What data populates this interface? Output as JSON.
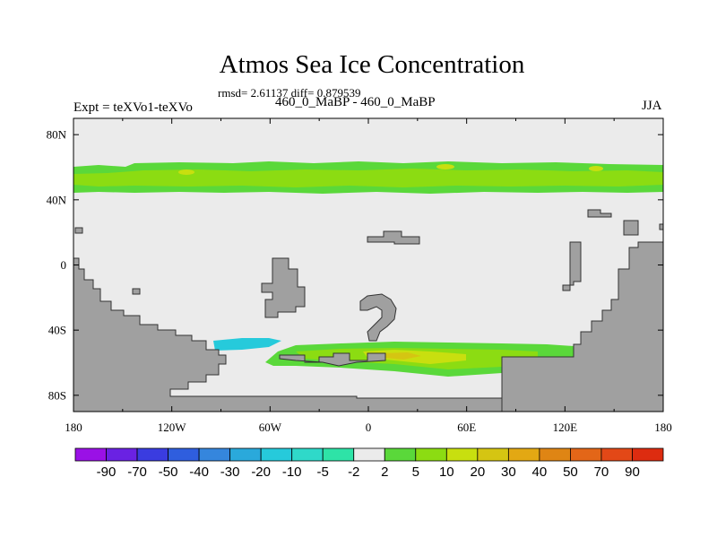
{
  "title": "Atmos Sea Ice Concentration",
  "stats": "rmsd= 2.61137 diff= 0.879539",
  "left_label": "Expt = teXVo1-teXVo",
  "subtitle": "460_0_MaBP - 460_0_MaBP",
  "season": "JJA",
  "map": {
    "lon_range": [
      -180,
      180
    ],
    "lat_range": [
      -90,
      90
    ],
    "lon_ticks": [
      {
        "value": -180,
        "label": "180"
      },
      {
        "value": -120,
        "label": "120W"
      },
      {
        "value": -60,
        "label": "60W"
      },
      {
        "value": 0,
        "label": "0"
      },
      {
        "value": 60,
        "label": "60E"
      },
      {
        "value": 120,
        "label": "120E"
      },
      {
        "value": 180,
        "label": "180"
      }
    ],
    "lat_ticks": [
      {
        "value": 80,
        "label": "80N"
      },
      {
        "value": 40,
        "label": "40N"
      },
      {
        "value": 0,
        "label": "0"
      },
      {
        "value": -40,
        "label": "40S"
      },
      {
        "value": -80,
        "label": "80S"
      }
    ],
    "colors": {
      "background": "#ebebeb",
      "land": "#a0a0a0",
      "coast": "#333333"
    }
  },
  "colorbar": {
    "labels": [
      "-90",
      "-70",
      "-50",
      "-40",
      "-30",
      "-20",
      "-10",
      "-5",
      "-2",
      "2",
      "5",
      "10",
      "20",
      "30",
      "40",
      "50",
      "70",
      "90"
    ],
    "colors": [
      "#9a11e6",
      "#6a22e3",
      "#3a3ce0",
      "#2f5ede",
      "#3586dd",
      "#2aa9db",
      "#26cadb",
      "#2fd9c9",
      "#2ee3a7",
      "#ebebeb",
      "#5ad83a",
      "#8cdc12",
      "#c8df0f",
      "#d5c512",
      "#e3a813",
      "#df8514",
      "#e36618",
      "#e34817",
      "#dd2c10"
    ]
  }
}
